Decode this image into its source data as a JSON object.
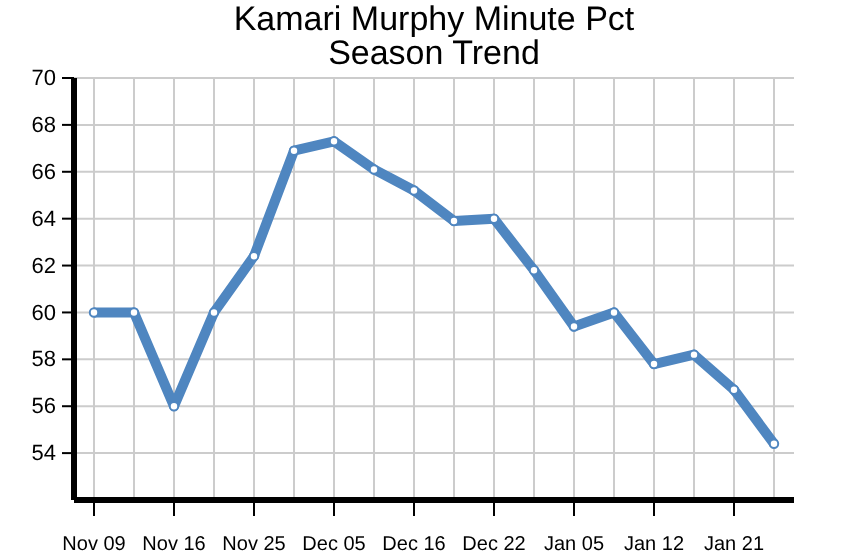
{
  "chart_data": {
    "type": "line",
    "title": "Kamari Murphy Minute Pct\nSeason Trend",
    "categories": [
      "Nov 09",
      null,
      "Nov 16",
      null,
      "Nov 25",
      null,
      "Dec 05",
      null,
      "Dec 16",
      null,
      "Dec 22",
      null,
      "Jan 05",
      null,
      "Jan 12",
      null,
      "Jan 21",
      null
    ],
    "series": [
      {
        "color": "#4f86c0",
        "values": [
          60,
          60,
          56,
          60,
          62.4,
          66.9,
          67.3,
          66.1,
          65.2,
          63.9,
          64.0,
          61.8,
          59.4,
          60,
          57.8,
          58.2,
          56.7,
          54.4
        ]
      }
    ],
    "ylim": [
      52,
      70
    ],
    "yticks": [
      54,
      56,
      58,
      60,
      62,
      64,
      66,
      68,
      70
    ],
    "grid": true,
    "marker": "circle",
    "line_style": "solid"
  }
}
